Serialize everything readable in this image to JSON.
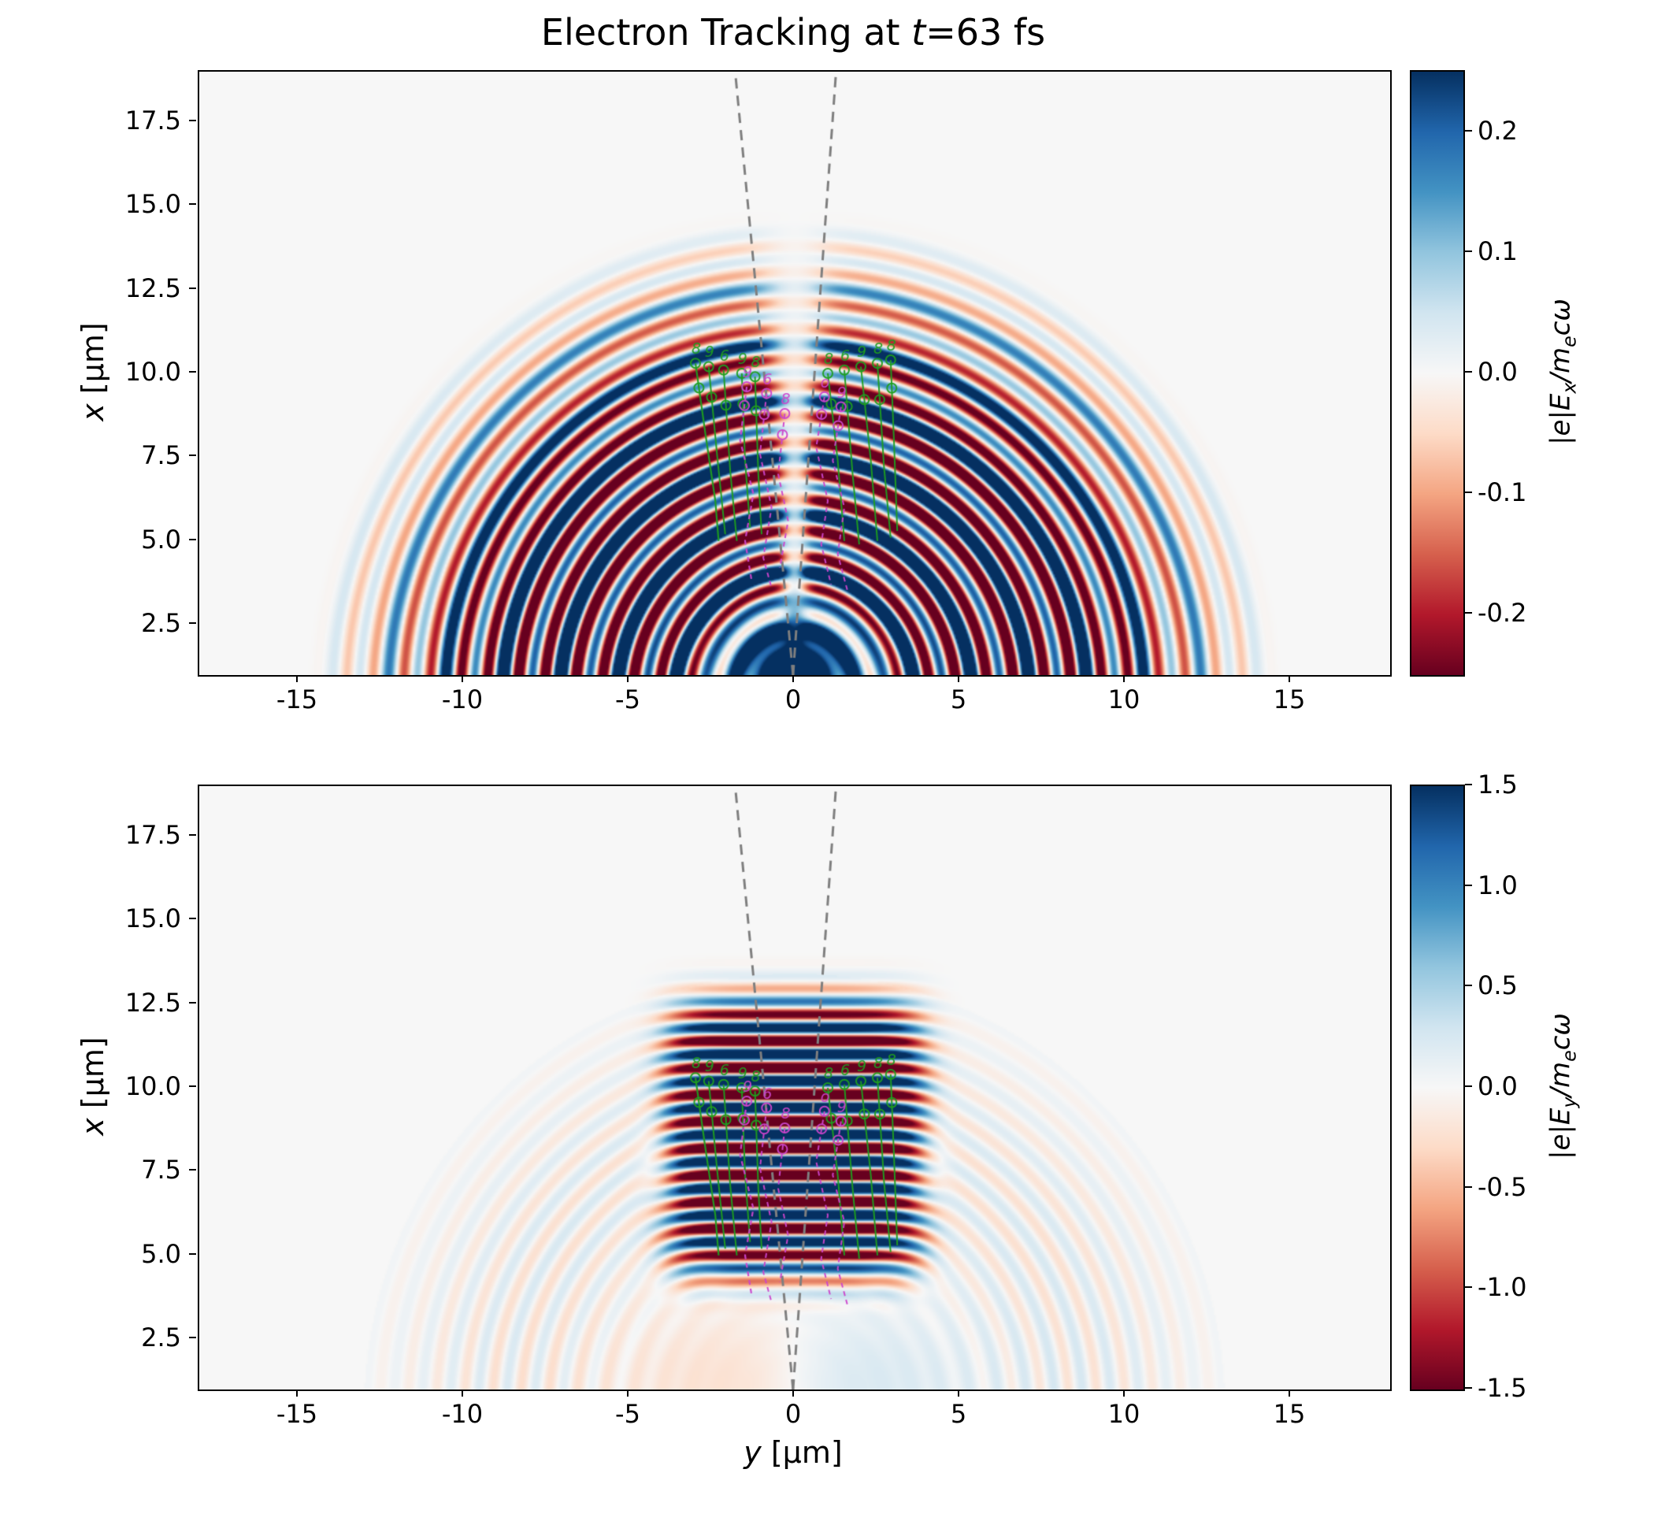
{
  "figure": {
    "title_prefix": "Electron Tracking at ",
    "title_var": "t",
    "title_suffix": "=63 fs",
    "background": "#ffffff"
  },
  "colormap_rdbu": [
    "#67001f",
    "#b2182b",
    "#d6604d",
    "#f4a582",
    "#fddbc7",
    "#f7f7f7",
    "#d1e5f0",
    "#92c5de",
    "#4393c3",
    "#2166ac",
    "#053061"
  ],
  "chart_data": [
    {
      "type": "heatmap",
      "name": "Ex-field-map",
      "title": "Electron Tracking at t=63 fs",
      "xlabel_var": "y",
      "xlabel_unit": " [μm]",
      "ylabel_var": "x",
      "ylabel_unit": " [μm]",
      "xlim": [
        -18,
        18
      ],
      "ylim": [
        1,
        19
      ],
      "xticks": [
        -15,
        -10,
        -5,
        0,
        5,
        10,
        15
      ],
      "xticklabels": [
        "-15",
        "-10",
        "-5",
        "0",
        "5",
        "10",
        "15"
      ],
      "yticks": [
        17.5,
        15.0,
        12.5,
        10.0,
        7.5,
        5.0,
        2.5
      ],
      "yticklabels": [
        "17.5",
        "15.0",
        "12.5",
        "10.0",
        "7.5",
        "5.0",
        "2.5"
      ],
      "grid": false,
      "colorbar": {
        "cmap": "RdBu",
        "vmin": -0.25,
        "vmax": 0.25,
        "ticks": [
          0.2,
          0.1,
          0.0,
          -0.1,
          -0.2
        ],
        "ticklabels": [
          "0.2",
          "0.1",
          "0.0",
          "-0.1",
          "-0.2"
        ],
        "label_p1": "|e|E",
        "label_sub1": "x",
        "label_p2": "/m",
        "label_sub2": "e",
        "label_p3": "cω"
      },
      "field": {
        "pattern": "concentric-semicircular-wavefronts",
        "source_um": [
          0,
          0.4
        ],
        "wavelength_um": 0.85,
        "r_max_um": 13.2,
        "envelope_center_um": 7.2,
        "envelope_width_um": 4.6,
        "arc_amp": 1.5,
        "core_amp": 2.0,
        "core_radius_um": 2.2
      }
    },
    {
      "type": "heatmap",
      "name": "Ey-field-map",
      "title": "",
      "xlabel_var": "y",
      "xlabel_unit": " [μm]",
      "ylabel_var": "x",
      "ylabel_unit": " [μm]",
      "xlim": [
        -18,
        18
      ],
      "ylim": [
        1,
        19
      ],
      "xticks": [
        -15,
        -10,
        -5,
        0,
        5,
        10,
        15
      ],
      "xticklabels": [
        "-15",
        "-10",
        "-5",
        "0",
        "5",
        "10",
        "15"
      ],
      "yticks": [
        17.5,
        15.0,
        12.5,
        10.0,
        7.5,
        5.0,
        2.5
      ],
      "yticklabels": [
        "17.5",
        "15.0",
        "12.5",
        "10.0",
        "7.5",
        "5.0",
        "2.5"
      ],
      "grid": false,
      "colorbar": {
        "cmap": "RdBu",
        "vmin": -1.5,
        "vmax": 1.5,
        "ticks": [
          1.5,
          1.0,
          0.5,
          0.0,
          -0.5,
          -1.0,
          -1.5
        ],
        "ticklabels": [
          "1.5",
          "1.0",
          "0.5",
          "0.0",
          "-0.5",
          "-1.0",
          "-1.5"
        ],
        "label_p1": "|e|E",
        "label_sub1": "y",
        "label_p2": "/m",
        "label_sub2": "e",
        "label_p3": "cω"
      },
      "field": {
        "pattern": "horizontal-stripes",
        "wavelength_um": 0.8,
        "stripe_halfwidth_um": 3.8,
        "stripe_x_range_um": [
          4.4,
          12.6
        ],
        "stripe_amp": 1.9,
        "faint_arc_amp": 0.16,
        "faint_arc_rmax_um": 13.0
      }
    }
  ],
  "overlays": {
    "cone": {
      "color": "#7f7f7f",
      "lines": [
        [
          [
            -0.05,
            1.0
          ],
          [
            -1.8,
            19.0
          ]
        ],
        [
          [
            -0.05,
            1.0
          ],
          [
            1.25,
            19.0
          ]
        ]
      ]
    },
    "green_tracks": {
      "color": "#1f9e1f",
      "tracks": [
        {
          "label": "8",
          "pts": [
            [
              -3.0,
              10.3
            ],
            [
              -2.7,
              8.2
            ],
            [
              -2.4,
              6.2
            ],
            [
              -2.3,
              5.0
            ]
          ]
        },
        {
          "label": "9",
          "pts": [
            [
              -2.6,
              10.2
            ],
            [
              -2.35,
              7.6
            ],
            [
              -2.1,
              5.2
            ]
          ]
        },
        {
          "label": "6",
          "pts": [
            [
              -2.15,
              10.1
            ],
            [
              -1.95,
              7.1
            ],
            [
              -1.75,
              5.0
            ]
          ]
        },
        {
          "label": "9",
          "pts": [
            [
              -1.6,
              10.0
            ],
            [
              -1.5,
              7.4
            ],
            [
              -1.35,
              5.4
            ]
          ]
        },
        {
          "label": "8",
          "pts": [
            [
              -1.2,
              9.9
            ],
            [
              -1.1,
              7.0
            ],
            [
              -1.0,
              5.2
            ]
          ]
        },
        {
          "label": "8",
          "pts": [
            [
              1.0,
              10.0
            ],
            [
              1.3,
              7.4
            ],
            [
              1.5,
              5.0
            ]
          ]
        },
        {
          "label": "6",
          "pts": [
            [
              1.5,
              10.1
            ],
            [
              1.75,
              7.0
            ],
            [
              1.95,
              4.9
            ]
          ]
        },
        {
          "label": "9",
          "pts": [
            [
              2.0,
              10.2
            ],
            [
              2.3,
              7.4
            ],
            [
              2.5,
              5.0
            ]
          ]
        },
        {
          "label": "8",
          "pts": [
            [
              2.5,
              10.3
            ],
            [
              2.7,
              7.2
            ],
            [
              2.9,
              5.1
            ]
          ]
        },
        {
          "label": "8",
          "pts": [
            [
              2.9,
              10.4
            ],
            [
              3.0,
              8.0
            ],
            [
              3.1,
              5.3
            ]
          ]
        }
      ]
    },
    "magenta_tracks": {
      "color": "#cc44cc",
      "tracks": [
        {
          "label": "9",
          "pts": [
            [
              -1.45,
              9.6
            ],
            [
              -1.65,
              8.0
            ],
            [
              -1.25,
              6.4
            ],
            [
              -1.5,
              5.0
            ],
            [
              -1.3,
              3.8
            ]
          ]
        },
        {
          "label": "6",
          "pts": [
            [
              -0.85,
              9.4
            ],
            [
              -1.05,
              7.6
            ],
            [
              -0.7,
              6.0
            ],
            [
              -0.95,
              4.5
            ],
            [
              -0.7,
              3.6
            ]
          ]
        },
        {
          "label": "o",
          "pts": [
            [
              0.9,
              9.3
            ],
            [
              0.65,
              7.8
            ],
            [
              1.0,
              6.2
            ],
            [
              0.8,
              4.9
            ],
            [
              1.1,
              3.7
            ]
          ]
        },
        {
          "label": "9",
          "pts": [
            [
              1.4,
              9.0
            ],
            [
              1.15,
              7.4
            ],
            [
              1.5,
              6.0
            ],
            [
              1.3,
              4.6
            ],
            [
              1.6,
              3.5
            ]
          ]
        },
        {
          "label": "8",
          "pts": [
            [
              -0.3,
              8.8
            ],
            [
              -0.5,
              7.0
            ],
            [
              -0.2,
              5.6
            ],
            [
              -0.45,
              4.2
            ]
          ]
        }
      ]
    }
  }
}
